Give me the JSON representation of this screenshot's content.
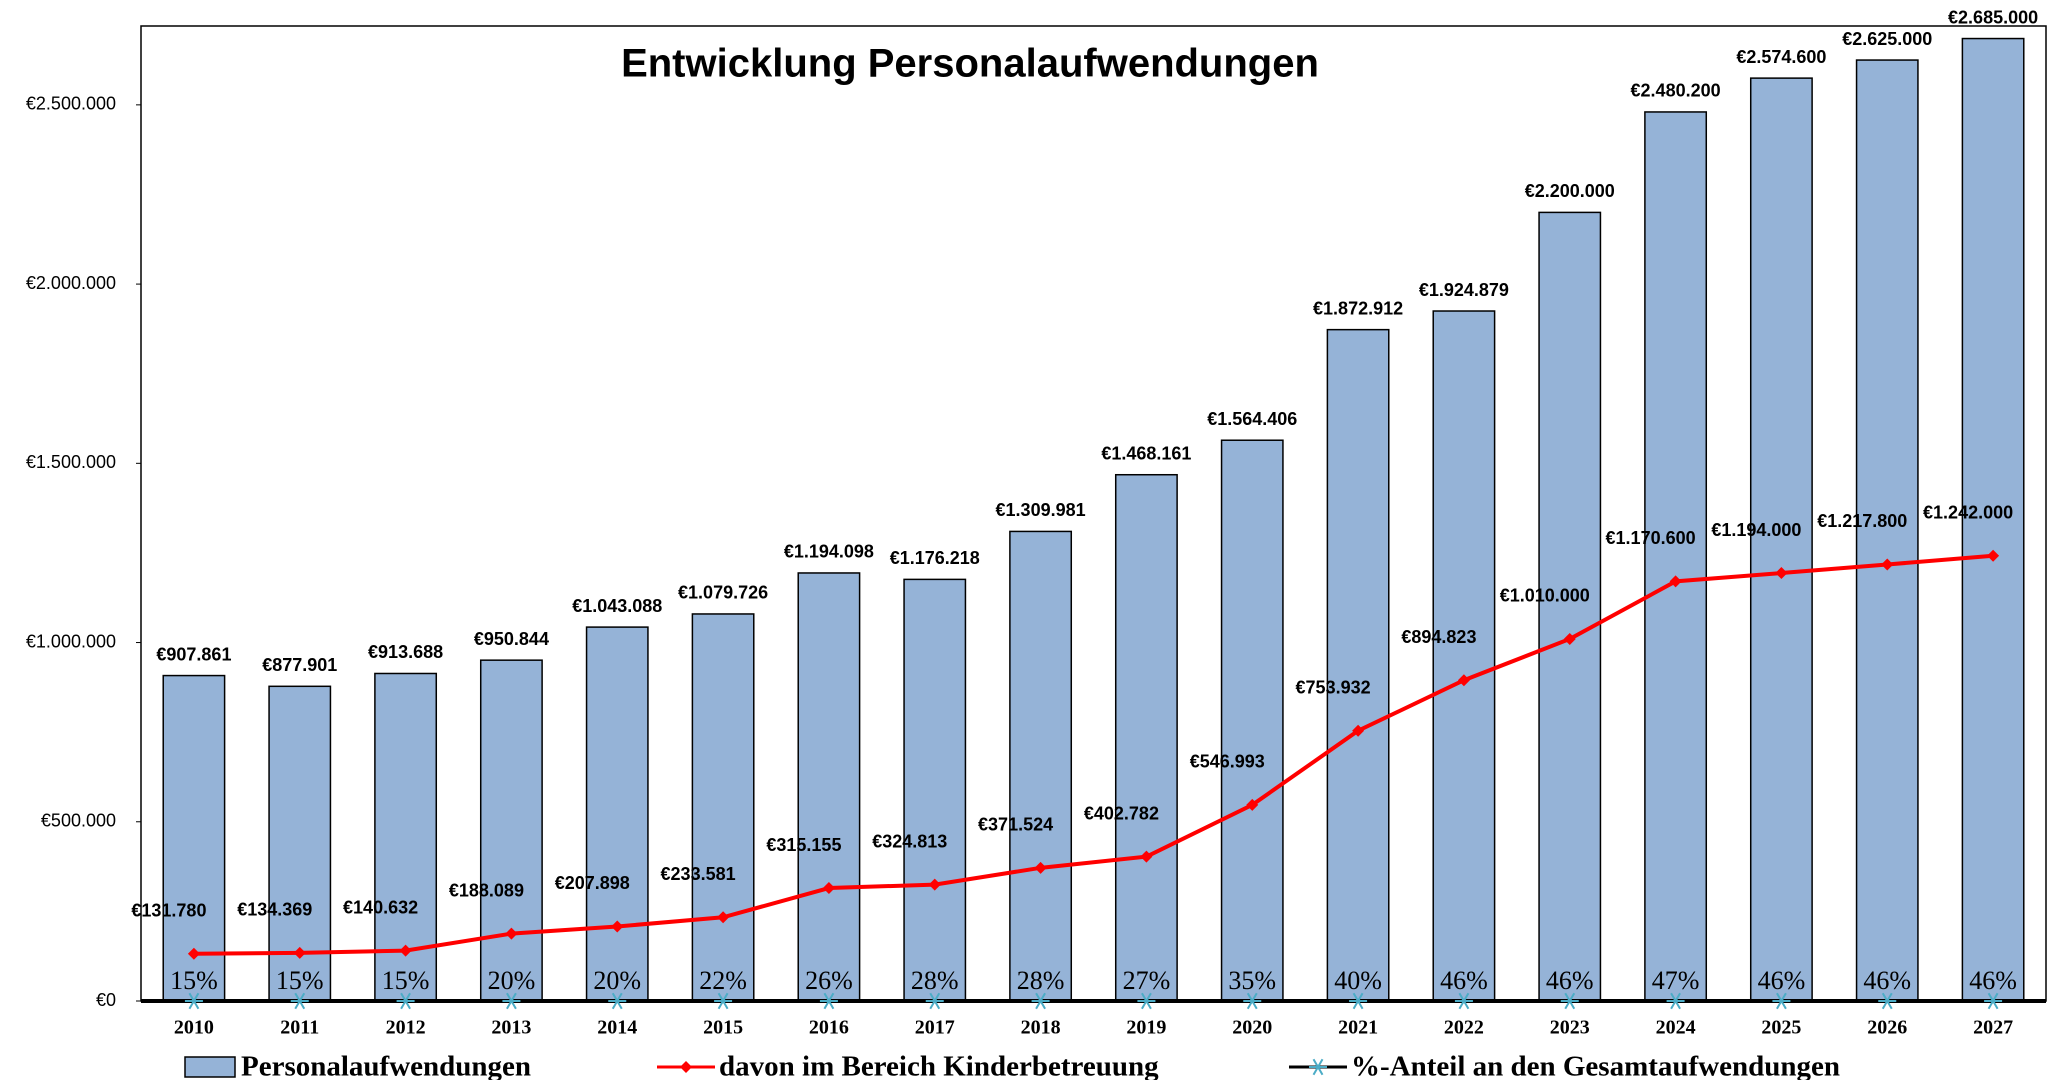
{
  "chart_data": {
    "type": "bar_line",
    "title": "Entwicklung Personalaufwendungen",
    "categories": [
      "2010",
      "2011",
      "2012",
      "2013",
      "2014",
      "2015",
      "2016",
      "2017",
      "2018",
      "2019",
      "2020",
      "2021",
      "2022",
      "2023",
      "2024",
      "2025",
      "2026",
      "2027"
    ],
    "ylim": [
      0,
      2720000
    ],
    "yticks": [
      {
        "value": 0,
        "label": "€0"
      },
      {
        "value": 500000,
        "label": "€500.000"
      },
      {
        "value": 1000000,
        "label": "€1.000.000"
      },
      {
        "value": 1500000,
        "label": "€1.500.000"
      },
      {
        "value": 2000000,
        "label": "€2.000.000"
      },
      {
        "value": 2500000,
        "label": "€2.500.000"
      }
    ],
    "series": [
      {
        "name": "Personalaufwendungen",
        "type": "bar",
        "color": "#95b3d7",
        "values": [
          907861,
          877901,
          913688,
          950844,
          1043088,
          1079726,
          1194098,
          1176218,
          1309981,
          1468161,
          1564406,
          1872912,
          1924879,
          2200000,
          2480200,
          2574600,
          2625000,
          2685000
        ],
        "value_labels": [
          "€907.861",
          "€877.901",
          "€913.688",
          "€950.844",
          "€1.043.088",
          "€1.079.726",
          "€1.194.098",
          "€1.176.218",
          "€1.309.981",
          "€1.468.161",
          "€1.564.406",
          "€1.872.912",
          "€1.924.879",
          "€2.200.000",
          "€2.480.200",
          "€2.574.600",
          "€2.625.000",
          "€2.685.000"
        ]
      },
      {
        "name": "davon im Bereich Kinderbetreuung",
        "type": "line",
        "color": "#ff0000",
        "values": [
          131780,
          134369,
          140632,
          188089,
          207898,
          233581,
          315155,
          324813,
          371524,
          402782,
          546993,
          753932,
          894823,
          1010000,
          1170600,
          1194000,
          1217800,
          1242000
        ],
        "value_labels": [
          "€131.780",
          "€134.369",
          "€140.632",
          "€188.089",
          "€207.898",
          "€233.581",
          "€315.155",
          "€324.813",
          "€371.524",
          "€402.782",
          "€546.993",
          "€753.932",
          "€894.823",
          "€1.010.000",
          "€1.170.600",
          "€1.194.000",
          "€1.217.800",
          "€1.242.000"
        ]
      },
      {
        "name": "%-Anteil an den Gesamtaufwendungen",
        "type": "line",
        "color": "#000000",
        "marker_color": "#4bacc6",
        "values": [
          15,
          15,
          15,
          20,
          20,
          22,
          26,
          28,
          28,
          27,
          35,
          40,
          46,
          46,
          47,
          46,
          46,
          46
        ],
        "value_labels": [
          "15%",
          "15%",
          "15%",
          "20%",
          "20%",
          "22%",
          "26%",
          "28%",
          "28%",
          "27%",
          "35%",
          "40%",
          "46%",
          "46%",
          "47%",
          "46%",
          "46%",
          "46%"
        ]
      }
    ]
  }
}
